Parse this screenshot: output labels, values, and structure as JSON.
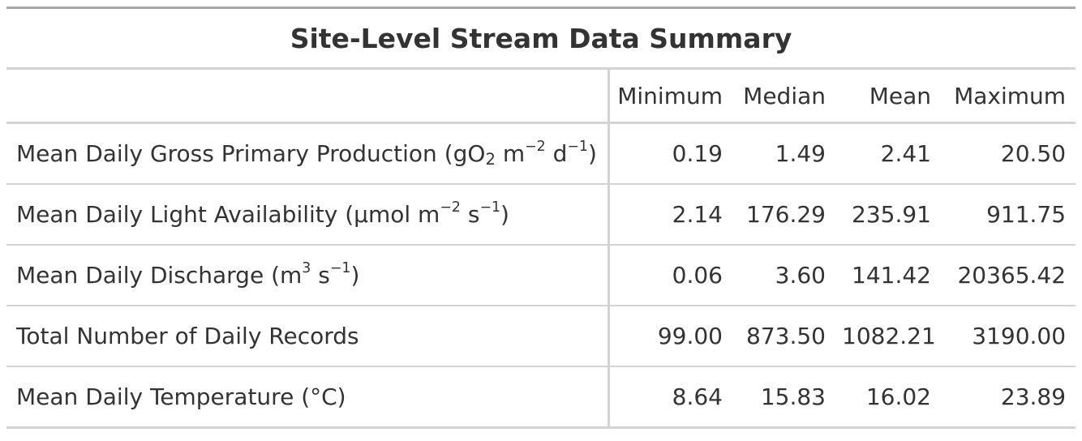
{
  "title": "Site-Level Stream Data Summary",
  "columns": [
    "Minimum",
    "Median",
    "Mean",
    "Maximum"
  ],
  "rows": [
    {
      "label_parts": {
        "pre": "Mean Daily Gross Primary Production (gO",
        "sub1": "2",
        "mid1": " m",
        "sup1": "−2",
        "mid2": " d",
        "sup2": "−1",
        "post": ")"
      },
      "values": [
        "0.19",
        "1.49",
        "2.41",
        "20.50"
      ]
    },
    {
      "label_parts": {
        "pre": "Mean Daily Light Availability (µmol m",
        "sup1": "−2",
        "mid1": " s",
        "sup2": "−1",
        "post": ")"
      },
      "values": [
        "2.14",
        "176.29",
        "235.91",
        "911.75"
      ]
    },
    {
      "label_parts": {
        "pre": "Mean Daily Discharge (m",
        "sup1": "3",
        "mid1": " s",
        "sup2": "−1",
        "post": ")"
      },
      "values": [
        "0.06",
        "3.60",
        "141.42",
        "20365.42"
      ]
    },
    {
      "label": "Total Number of Daily Records",
      "values": [
        "99.00",
        "873.50",
        "1082.21",
        "3190.00"
      ]
    },
    {
      "label": "Mean Daily Temperature (°C)",
      "values": [
        "8.64",
        "15.83",
        "16.02",
        "23.89"
      ]
    }
  ]
}
